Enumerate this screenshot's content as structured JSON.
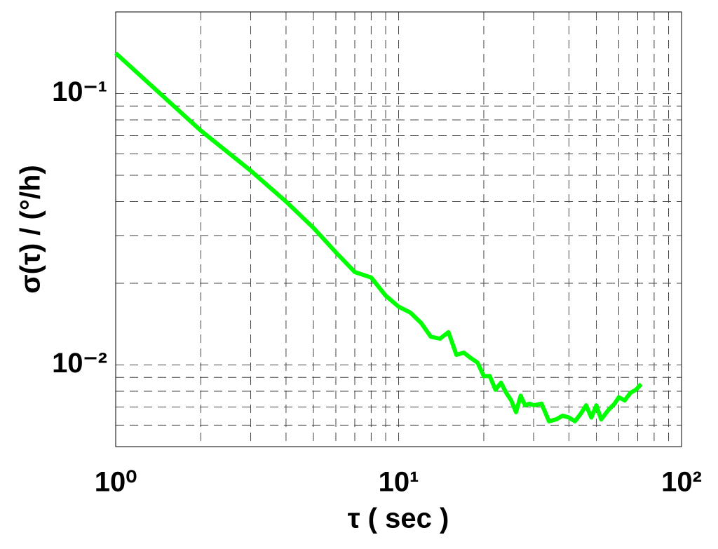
{
  "chart_data": {
    "type": "line",
    "x_label": "τ ( sec )",
    "y_label": "σ(τ) / (°/h)",
    "x": [
      1,
      2,
      3,
      4,
      5,
      6,
      7,
      8,
      9,
      10,
      11,
      12,
      13,
      14,
      15,
      16,
      17,
      18,
      19,
      20,
      21,
      22,
      23,
      24,
      25,
      26,
      27,
      28,
      29,
      30,
      32,
      34,
      36,
      38,
      40,
      42,
      44,
      46,
      48,
      50,
      52,
      55,
      58,
      60,
      63,
      66,
      69,
      72
    ],
    "series": [
      {
        "color": "#00ff00",
        "values": [
          0.141,
          0.073,
          0.052,
          0.04,
          0.032,
          0.026,
          0.022,
          0.021,
          0.018,
          0.0164,
          0.0156,
          0.0143,
          0.0127,
          0.0125,
          0.0132,
          0.0109,
          0.0111,
          0.0106,
          0.0102,
          0.0091,
          0.0091,
          0.0081,
          0.0086,
          0.0079,
          0.0074,
          0.0067,
          0.0077,
          0.0071,
          0.0072,
          0.0071,
          0.0072,
          0.0062,
          0.0063,
          0.0065,
          0.0064,
          0.0062,
          0.0066,
          0.0071,
          0.0064,
          0.0071,
          0.0063,
          0.0068,
          0.0072,
          0.0076,
          0.0074,
          0.0079,
          0.0081,
          0.0085
        ]
      }
    ],
    "log_x": true,
    "log_y": true,
    "xlim": [
      1,
      100
    ],
    "ylim": [
      0.005,
      0.2
    ],
    "xticks": [
      {
        "value": 1,
        "label": "10⁰"
      },
      {
        "value": 10,
        "label": "10¹"
      },
      {
        "value": 100,
        "label": "10²"
      }
    ],
    "yticks": [
      {
        "value": 0.01,
        "label": "10⁻²"
      },
      {
        "value": 0.1,
        "label": "10⁻¹"
      }
    ],
    "minor_xticks": [
      2,
      3,
      4,
      5,
      6,
      7,
      8,
      9,
      20,
      30,
      40,
      50,
      60,
      70,
      80,
      90
    ],
    "minor_yticks": [
      0.006,
      0.007,
      0.008,
      0.009,
      0.02,
      0.03,
      0.04,
      0.05,
      0.06,
      0.07,
      0.08,
      0.09
    ],
    "grid": true
  }
}
